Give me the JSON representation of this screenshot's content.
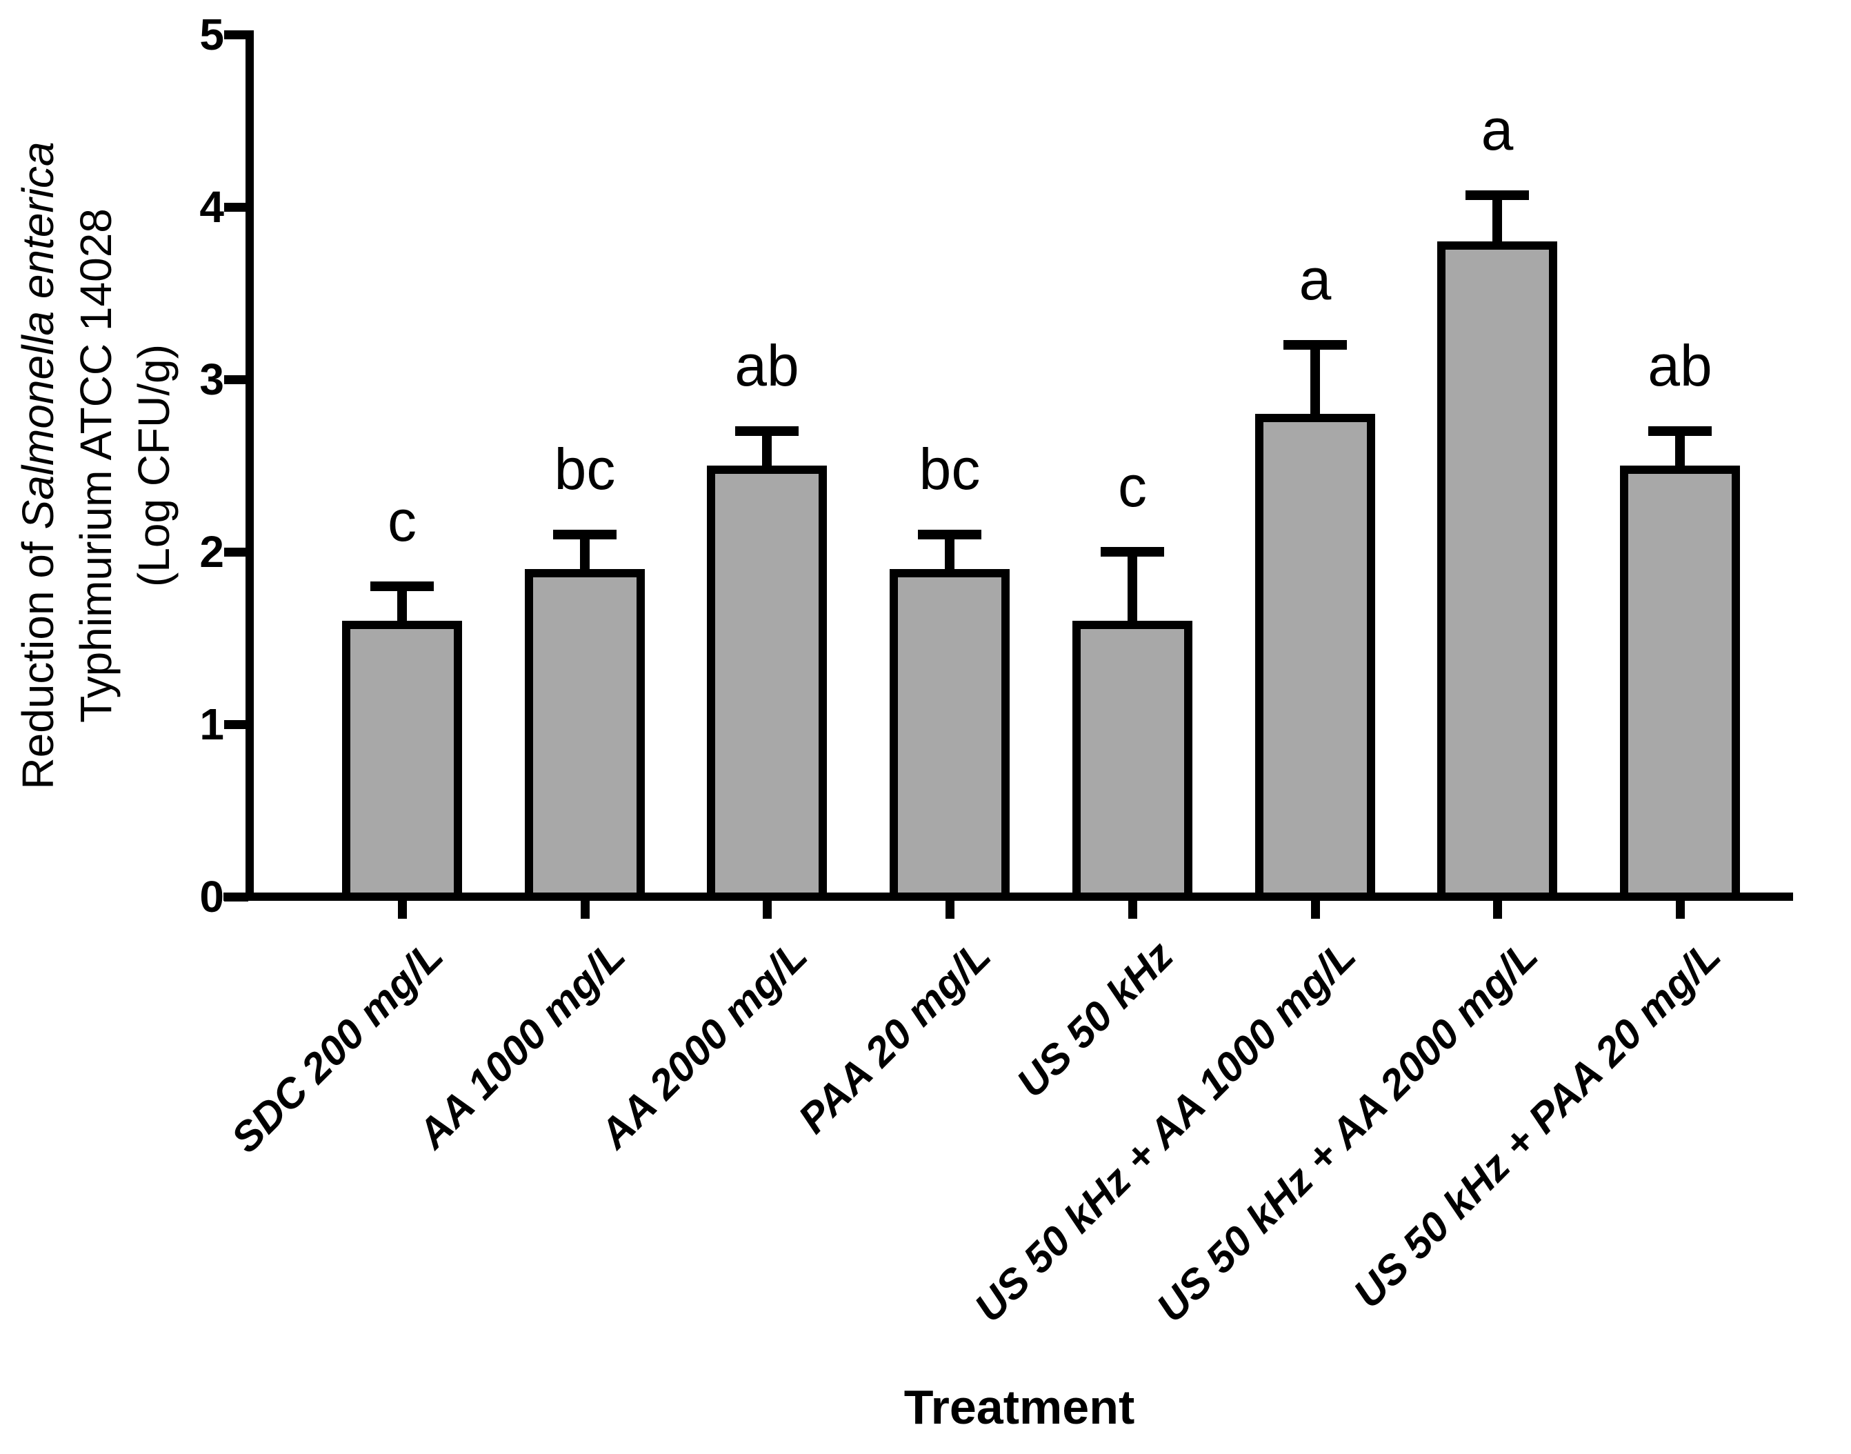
{
  "chart_data": {
    "type": "bar",
    "title": "",
    "xlabel": "Treatment",
    "ylabel": {
      "line1_normal": "Reduction of ",
      "line1_italic": "Salmonella enterica",
      "line2": "Typhimurium ATCC 14028",
      "line3": "(Log CFU/g)"
    },
    "categories": [
      "SDC 200 mg/L",
      "AA 1000 mg/L",
      "AA 2000 mg/L",
      "PAA 20 mg/L",
      "US 50 kHz",
      "US 50 kHz + AA 1000 mg/L",
      "US 50 kHz + AA 2000 mg/L",
      "US 50 kHz + PAA 20 mg/L"
    ],
    "values": [
      1.6,
      1.9,
      2.5,
      1.9,
      1.6,
      2.8,
      3.8,
      2.5
    ],
    "errors_plus": [
      0.2,
      0.2,
      0.2,
      0.2,
      0.4,
      0.4,
      0.27,
      0.2
    ],
    "sig_letters": [
      "c",
      "bc",
      "ab",
      "bc",
      "c",
      "a",
      "a",
      "ab"
    ],
    "yticks": [
      5,
      4,
      3,
      2,
      1,
      0
    ],
    "ylim": [
      0,
      5
    ],
    "grid": false,
    "legend": null,
    "bar_fill_color": "#a8a8a8",
    "bar_edge_color": "#000000",
    "error_bar_style": "upper only, with cap"
  }
}
